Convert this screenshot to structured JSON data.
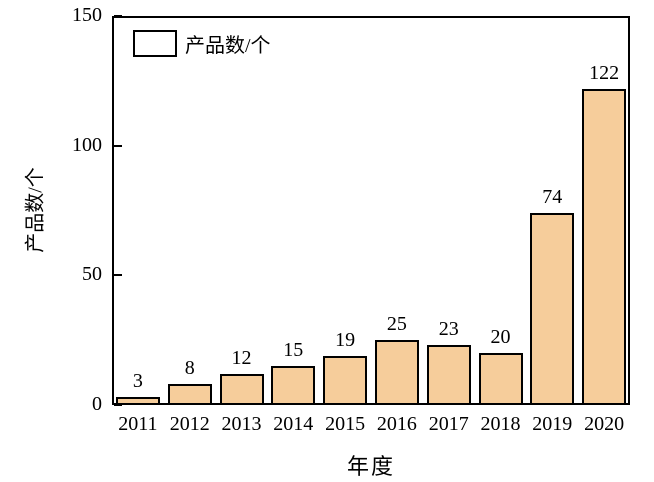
{
  "chart_data": {
    "type": "bar",
    "title": "",
    "categories": [
      "2011",
      "2012",
      "2013",
      "2014",
      "2015",
      "2016",
      "2017",
      "2018",
      "2019",
      "2020"
    ],
    "values": [
      3,
      8,
      12,
      15,
      19,
      25,
      23,
      20,
      74,
      122
    ],
    "xlabel": "年度",
    "ylabel": "产品数/个",
    "legend_label": "产品数/个",
    "legend_position": "top-left",
    "ylim": [
      0,
      150
    ],
    "yticks": [
      0,
      50,
      100,
      150
    ],
    "grid": false,
    "colors": {
      "bar_fill": "#F6CD9B",
      "bar_border": "#000000",
      "axis": "#000000",
      "text": "#000000",
      "background": "#FFFFFF"
    }
  }
}
